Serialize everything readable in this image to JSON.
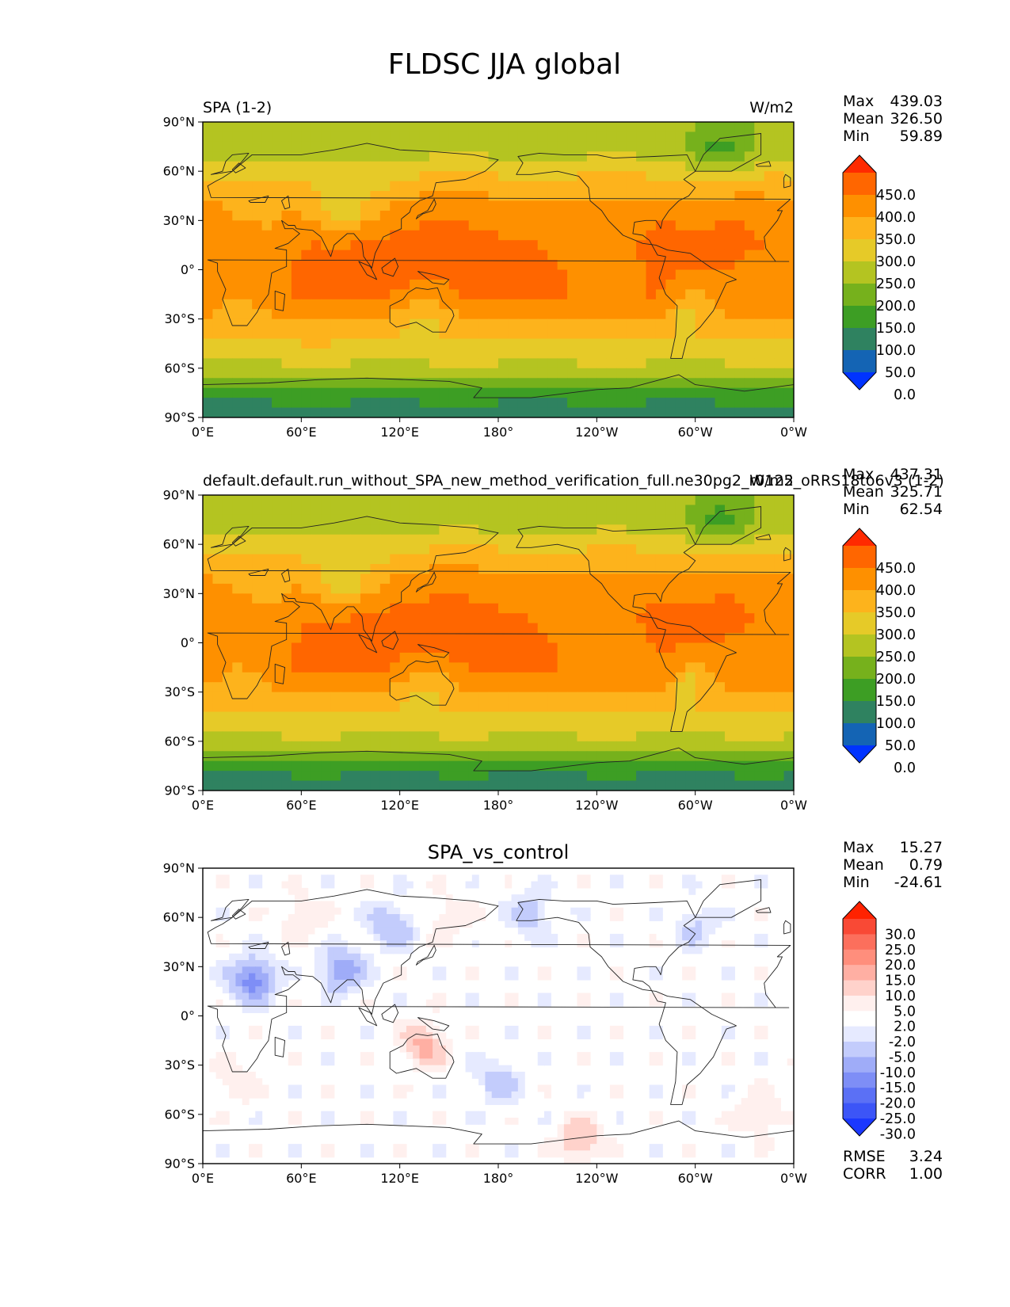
{
  "figure_title": "FLDSC JJA global",
  "axis_ticks": {
    "lat": [
      "90°N",
      "60°N",
      "30°N",
      "0°",
      "30°S",
      "60°S",
      "90°S"
    ],
    "lon": [
      "0°E",
      "60°E",
      "120°E",
      "180°",
      "120°W",
      "60°W",
      "0°W"
    ]
  },
  "panels": [
    {
      "title_left": "SPA (1-2)",
      "title_center": "",
      "units": "W/m2",
      "stats": {
        "max_label": "Max",
        "max": "439.03",
        "mean_label": "Mean",
        "mean": "326.50",
        "min_label": "Min",
        "min": "59.89"
      },
      "colorbar_labels": [
        "450.0",
        "400.0",
        "350.0",
        "300.0",
        "250.0",
        "200.0",
        "150.0",
        "100.0",
        "50.0",
        "0.0"
      ],
      "colors": [
        "#FF2A00",
        "#FF6600",
        "#FE9000",
        "#FDB31C",
        "#E6CA28",
        "#B4C421",
        "#76B11C",
        "#3D9E24",
        "#2F8260",
        "#1464B4",
        "#0033FF"
      ]
    },
    {
      "title_left": "default.default.run_without_SPA_new_method_verification_full.ne30pg2_r0125_oRRS18to6v3 (1-2)",
      "title_center": "",
      "units": "W/m2",
      "stats": {
        "max_label": "Max",
        "max": "437.31",
        "mean_label": "Mean",
        "mean": "325.71",
        "min_label": "Min",
        "min": "62.54"
      },
      "colorbar_labels": [
        "450.0",
        "400.0",
        "350.0",
        "300.0",
        "250.0",
        "200.0",
        "150.0",
        "100.0",
        "50.0",
        "0.0"
      ],
      "colors": [
        "#FF2A00",
        "#FF6600",
        "#FE9000",
        "#FDB31C",
        "#E6CA28",
        "#B4C421",
        "#76B11C",
        "#3D9E24",
        "#2F8260",
        "#1464B4",
        "#0033FF"
      ]
    },
    {
      "title_left": "",
      "title_center": "SPA_vs_control",
      "units": "",
      "stats": {
        "max_label": "Max",
        "max": "15.27",
        "mean_label": "Mean",
        "mean": "0.79",
        "min_label": "Min",
        "min": "-24.61"
      },
      "colorbar_labels": [
        "30.0",
        "25.0",
        "20.0",
        "15.0",
        "10.0",
        "5.0",
        "2.0",
        "-2.0",
        "-5.0",
        "-10.0",
        "-15.0",
        "-20.0",
        "-25.0",
        "-30.0"
      ],
      "colors": [
        "#FF2200",
        "#F94935",
        "#FC6F5C",
        "#FF8E7C",
        "#FFAFA3",
        "#FFD2CB",
        "#FFF0EE",
        "#FFFFFF",
        "#E6EAFF",
        "#C3CCFC",
        "#9FACF8",
        "#7E8EF6",
        "#5B70F5",
        "#3C55F7",
        "#1B38FF"
      ],
      "rmse_label": "RMSE",
      "rmse": "3.24",
      "corr_label": "CORR",
      "corr": "1.00"
    }
  ],
  "chart_data": [
    {
      "type": "heatmap",
      "projection": "PlateCarree",
      "title": "SPA (1-2)",
      "units": "W/m2",
      "xlim": [
        0,
        360
      ],
      "ylim": [
        -90,
        90
      ],
      "levels": [
        0,
        50,
        100,
        150,
        200,
        250,
        300,
        350,
        400,
        450
      ],
      "extend": "both",
      "zonal_bands_approx": [
        {
          "lat": [
            70,
            90
          ],
          "value": 210
        },
        {
          "lat": [
            45,
            70
          ],
          "value": 290
        },
        {
          "lat": [
            20,
            45
          ],
          "value": 360
        },
        {
          "lat": [
            -20,
            20
          ],
          "value": 400
        },
        {
          "lat": [
            -35,
            -20
          ],
          "value": 330
        },
        {
          "lat": [
            -55,
            -35
          ],
          "value": 260
        },
        {
          "lat": [
            -70,
            -55
          ],
          "value": 180
        },
        {
          "lat": [
            -90,
            -70
          ],
          "value": 80
        }
      ]
    },
    {
      "type": "heatmap",
      "projection": "PlateCarree",
      "title": "default.default.run_without_SPA_new_method_verification_full.ne30pg2_r0125_oRRS18to6v3 (1-2)",
      "units": "W/m2",
      "xlim": [
        0,
        360
      ],
      "ylim": [
        -90,
        90
      ],
      "levels": [
        0,
        50,
        100,
        150,
        200,
        250,
        300,
        350,
        400,
        450
      ],
      "extend": "both",
      "zonal_bands_approx": [
        {
          "lat": [
            70,
            90
          ],
          "value": 210
        },
        {
          "lat": [
            45,
            70
          ],
          "value": 290
        },
        {
          "lat": [
            20,
            45
          ],
          "value": 360
        },
        {
          "lat": [
            -20,
            20
          ],
          "value": 400
        },
        {
          "lat": [
            -35,
            -20
          ],
          "value": 330
        },
        {
          "lat": [
            -55,
            -35
          ],
          "value": 260
        },
        {
          "lat": [
            -70,
            -55
          ],
          "value": 180
        },
        {
          "lat": [
            -90,
            -70
          ],
          "value": 80
        }
      ]
    },
    {
      "type": "heatmap",
      "projection": "PlateCarree",
      "title": "SPA_vs_control",
      "xlim": [
        0,
        360
      ],
      "ylim": [
        -90,
        90
      ],
      "levels": [
        -30,
        -25,
        -20,
        -15,
        -10,
        -5,
        -2,
        2,
        5,
        10,
        15,
        20,
        25,
        30
      ],
      "extend": "both",
      "anomalies_approx": [
        {
          "lon": 30,
          "lat": 22,
          "value": -18
        },
        {
          "lon": 85,
          "lat": 28,
          "value": -15
        },
        {
          "lon": 115,
          "lat": 55,
          "value": -10
        },
        {
          "lon": 150,
          "lat": 60,
          "value": 5
        },
        {
          "lon": 200,
          "lat": 62,
          "value": -8
        },
        {
          "lon": 300,
          "lat": 55,
          "value": -6
        },
        {
          "lon": 135,
          "lat": -18,
          "value": 12
        },
        {
          "lon": 180,
          "lat": -40,
          "value": -8
        },
        {
          "lon": 230,
          "lat": -75,
          "value": 10
        },
        {
          "lon": 60,
          "lat": 60,
          "value": 6
        },
        {
          "lon": 20,
          "lat": -40,
          "value": 5
        },
        {
          "lon": 340,
          "lat": -60,
          "value": 6
        }
      ]
    }
  ]
}
